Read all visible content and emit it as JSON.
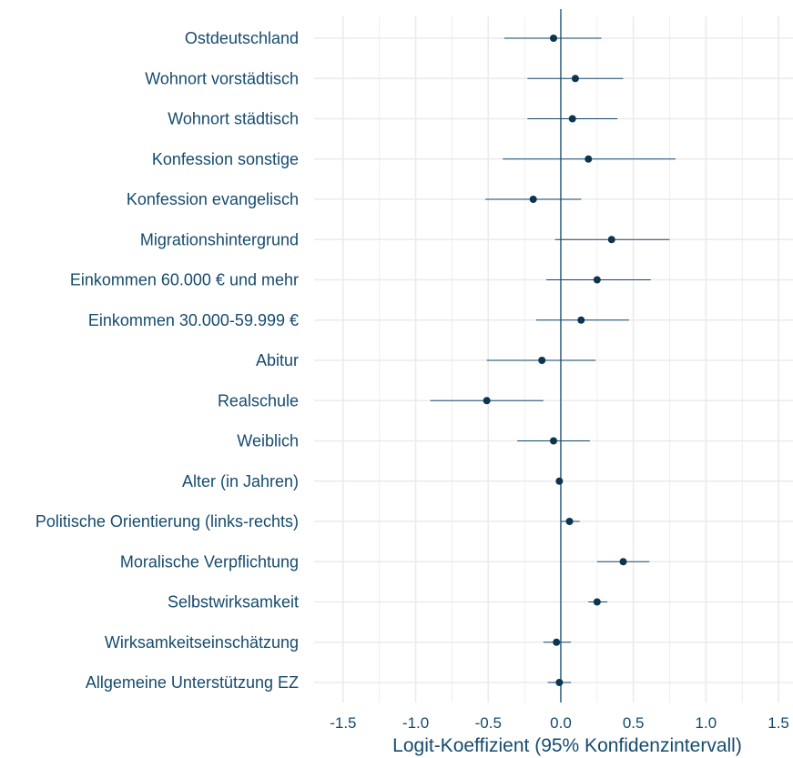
{
  "chart_data": {
    "type": "scatter",
    "subtype": "coefficient-plot",
    "xlabel": "Logit-Koeffizient (95% Konfidenzintervall)",
    "xlim": [
      -1.7,
      1.6
    ],
    "xticks": [
      "-1.5",
      "-1.0",
      "-0.5",
      "0.0",
      "0.5",
      "1.0",
      "1.5"
    ],
    "xtick_values": [
      -1.5,
      -1.0,
      -0.5,
      0.0,
      0.5,
      1.0,
      1.5
    ],
    "reference_line": 0,
    "grid": true,
    "colors": {
      "accent": "#154b6e",
      "grid": "#ebebeb",
      "text": "#154b6e"
    },
    "categories": [
      "Ostdeutschland",
      "Wohnort vorstädtisch",
      "Wohnort städtisch",
      "Konfession sonstige",
      "Konfession evangelisch",
      "Migrationshintergrund",
      "Einkommen 60.000 € und mehr",
      "Einkommen 30.000-59.999 €",
      "Abitur",
      "Realschule",
      "Weiblich",
      "Alter (in Jahren)",
      "Politische Orientierung (links-rechts)",
      "Moralische Verpflichtung",
      "Selbstwirksamkeit",
      "Wirksamkeitseinschätzung",
      "Allgemeine Unterstützung EZ"
    ],
    "estimates": [
      -0.05,
      0.1,
      0.08,
      0.19,
      -0.19,
      0.35,
      0.25,
      0.14,
      -0.13,
      -0.51,
      -0.05,
      -0.01,
      0.06,
      0.43,
      0.25,
      -0.03,
      -0.01
    ],
    "ci_low": [
      -0.39,
      -0.23,
      -0.23,
      -0.4,
      -0.52,
      -0.04,
      -0.1,
      -0.17,
      -0.51,
      -0.9,
      -0.3,
      -0.03,
      0.0,
      0.25,
      0.19,
      -0.12,
      -0.09
    ],
    "ci_high": [
      0.28,
      0.43,
      0.39,
      0.79,
      0.14,
      0.75,
      0.62,
      0.47,
      0.24,
      -0.12,
      0.2,
      0.01,
      0.13,
      0.61,
      0.32,
      0.07,
      0.07
    ]
  }
}
